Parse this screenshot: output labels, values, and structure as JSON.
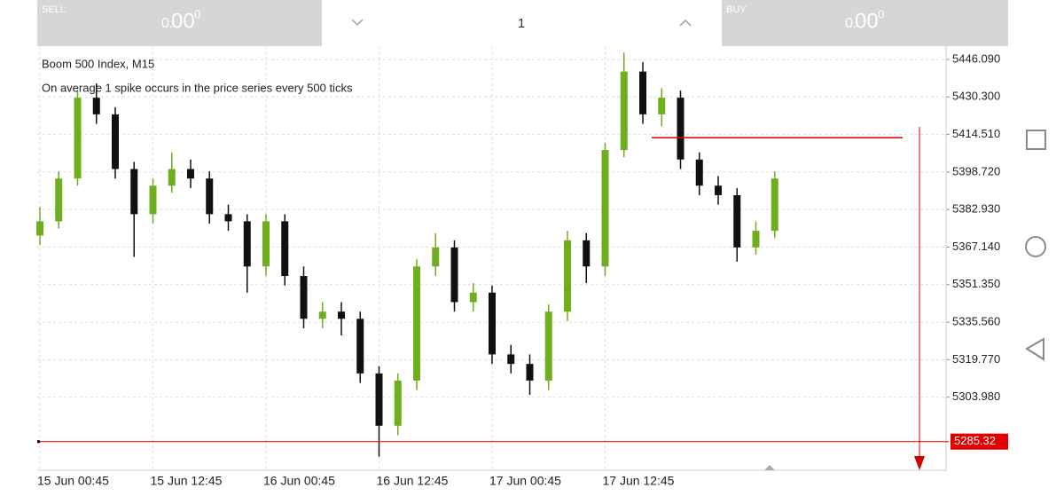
{
  "header": {
    "sell_label": "SELL",
    "sell_price": {
      "small": "0.",
      "big": "00",
      "sup": "0"
    },
    "volume": "1",
    "buy_label": "BUY",
    "buy_price": {
      "small": "0.",
      "big": "00",
      "sup": "0"
    }
  },
  "chart_data": {
    "type": "candlestick",
    "title": "Boom 500 Index, M15",
    "subtitle": "On average 1 spike occurs in the price series every 500 ticks",
    "categories": [
      "15 Jun 00:45",
      null,
      null,
      null,
      null,
      null,
      "15 Jun 12:45",
      null,
      null,
      null,
      null,
      null,
      "16 Jun 00:45",
      null,
      null,
      null,
      null,
      null,
      "16 Jun 12:45",
      null,
      null,
      null,
      null,
      null,
      "17 Jun 00:45",
      null,
      null,
      null,
      null,
      null,
      "17 Jun 12:45",
      null,
      null,
      null,
      null,
      null,
      null,
      null,
      null,
      null
    ],
    "open": [
      5372,
      5378,
      5396,
      5430,
      5423,
      5400,
      5381,
      5393,
      5400,
      5396,
      5381,
      5378,
      5359,
      5378,
      5355,
      5337,
      5340,
      5337,
      5314,
      5292,
      5311,
      5359,
      5367,
      5344,
      5348,
      5322,
      5318,
      5311,
      5340,
      5370,
      5359,
      5408,
      5441,
      5423,
      5430,
      5404,
      5393,
      5389,
      5367,
      5374
    ],
    "high": [
      5384,
      5399,
      5433,
      5436,
      5426,
      5403,
      5396,
      5407,
      5404,
      5399,
      5385,
      5381,
      5381,
      5381,
      5359,
      5344,
      5344,
      5340,
      5317,
      5314,
      5362,
      5373,
      5370,
      5352,
      5351,
      5326,
      5322,
      5343,
      5374,
      5373,
      5411,
      5449,
      5445,
      5434,
      5433,
      5407,
      5397,
      5392,
      5378,
      5399
    ],
    "low": [
      5368,
      5375,
      5393,
      5419,
      5396,
      5363,
      5377,
      5390,
      5392,
      5377,
      5374,
      5348,
      5355,
      5351,
      5333,
      5333,
      5330,
      5310,
      5279,
      5288,
      5307,
      5355,
      5340,
      5340,
      5318,
      5314,
      5305,
      5307,
      5336,
      5352,
      5355,
      5405,
      5419,
      5418,
      5400,
      5389,
      5385,
      5361,
      5364,
      5371
    ],
    "close": [
      5378,
      5396,
      5430,
      5423,
      5400,
      5381,
      5393,
      5400,
      5396,
      5381,
      5378,
      5359,
      5378,
      5355,
      5337,
      5340,
      5337,
      5314,
      5292,
      5311,
      5359,
      5367,
      5344,
      5348,
      5322,
      5318,
      5311,
      5340,
      5370,
      5359,
      5408,
      5441,
      5423,
      5430,
      5404,
      5393,
      5389,
      5367,
      5374,
      5396
    ],
    "up_color": "#6fae1f",
    "down_color": "#111111",
    "ylim": [
      5273.26,
      5451.69
    ],
    "yticks": [
      {
        "value": 5446.09,
        "label": "5446.090"
      },
      {
        "value": 5430.3,
        "label": "5430.300"
      },
      {
        "value": 5414.51,
        "label": "5414.510"
      },
      {
        "value": 5398.72,
        "label": "5398.720"
      },
      {
        "value": 5382.93,
        "label": "5382.930"
      },
      {
        "value": 5367.14,
        "label": "5367.140"
      },
      {
        "value": 5351.35,
        "label": "5351.350"
      },
      {
        "value": 5335.56,
        "label": "5335.560"
      },
      {
        "value": 5319.77,
        "label": "5319.770"
      },
      {
        "value": 5303.98,
        "label": "5303.980"
      }
    ],
    "price_level": {
      "value": 5285.32,
      "label": "5285.32"
    },
    "hline": 5413.2,
    "grid": true
  }
}
